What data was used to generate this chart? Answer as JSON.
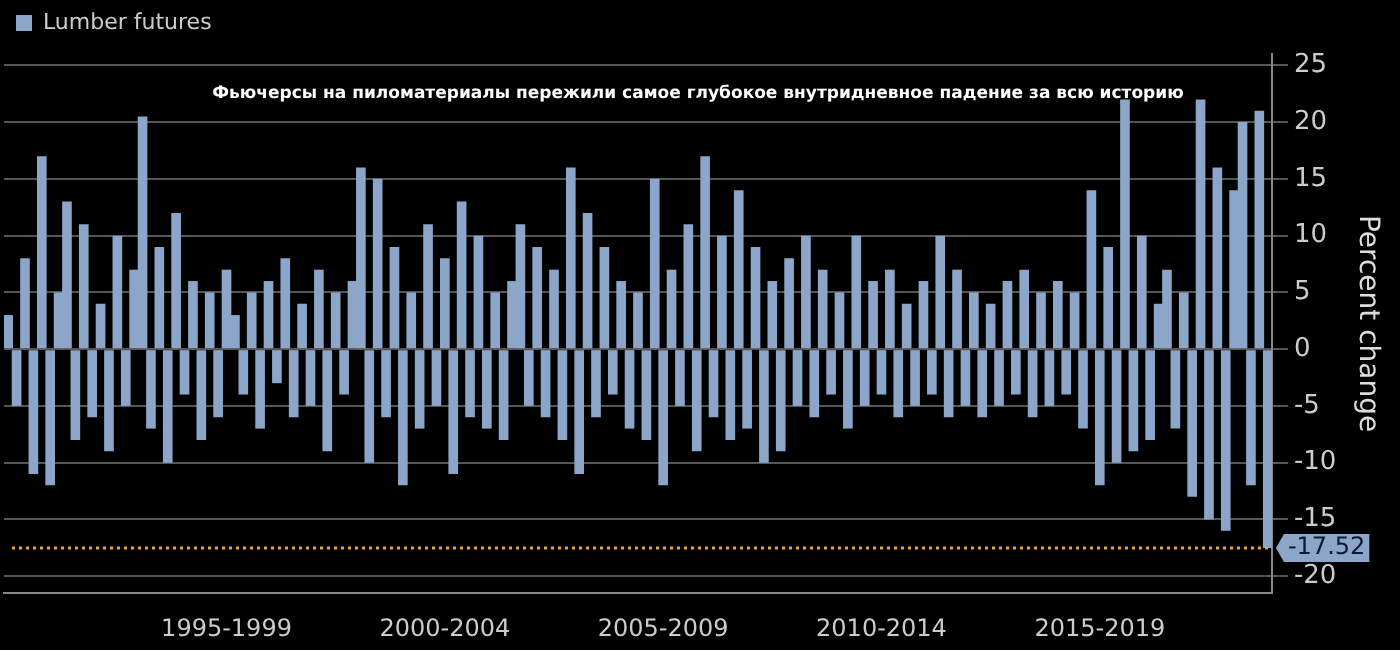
{
  "chart_data": {
    "type": "bar",
    "title": "Фьючерсы на пиломатериалы пережили самое глубокое внутридневное падение за всю историю",
    "ylabel": "Percent change",
    "categories": [
      null,
      null,
      null,
      null,
      null,
      null,
      null,
      null,
      null,
      null,
      null,
      null,
      null,
      null,
      null,
      null,
      null,
      null,
      null,
      null,
      null,
      null,
      null,
      null,
      null,
      null,
      "1995-1999",
      null,
      null,
      null,
      null,
      null,
      null,
      null,
      null,
      null,
      null,
      null,
      null,
      null,
      null,
      null,
      null,
      null,
      null,
      null,
      null,
      null,
      null,
      null,
      null,
      null,
      "2000-2004",
      null,
      null,
      null,
      null,
      null,
      null,
      null,
      null,
      null,
      null,
      null,
      null,
      null,
      null,
      null,
      null,
      null,
      null,
      null,
      null,
      null,
      null,
      null,
      null,
      null,
      "2005-2009",
      null,
      null,
      null,
      null,
      null,
      null,
      null,
      null,
      null,
      null,
      null,
      null,
      null,
      null,
      null,
      null,
      null,
      null,
      null,
      null,
      null,
      null,
      null,
      null,
      null,
      "2010-2014",
      null,
      null,
      null,
      null,
      null,
      null,
      null,
      null,
      null,
      null,
      null,
      null,
      null,
      null,
      null,
      null,
      null,
      null,
      null,
      null,
      null,
      null,
      null,
      null,
      null,
      "2015-2019",
      null,
      null,
      null,
      null,
      null,
      null,
      null,
      null,
      null,
      null,
      null,
      null,
      null,
      null,
      null,
      null,
      null,
      null,
      null,
      null
    ],
    "series": [
      {
        "name": "Lumber futures",
        "color": "#8ca6c9",
        "values": [
          3,
          -5,
          8,
          -11,
          17,
          -12,
          5,
          13,
          -8,
          11,
          -6,
          4,
          -9,
          10,
          -5,
          7,
          20.5,
          -7,
          9,
          -10,
          12,
          -4,
          6,
          -8,
          5,
          -6,
          7,
          3,
          -4,
          5,
          -7,
          6,
          -3,
          8,
          -6,
          4,
          -5,
          7,
          -9,
          5,
          -4,
          6,
          16,
          -10,
          15,
          -6,
          9,
          -12,
          5,
          -7,
          11,
          -5,
          8,
          -11,
          13,
          -6,
          10,
          -7,
          5,
          -8,
          6,
          11,
          -5,
          9,
          -6,
          7,
          -8,
          16,
          -11,
          12,
          -6,
          9,
          -4,
          6,
          -7,
          5,
          -8,
          15,
          -12,
          7,
          -5,
          11,
          -9,
          17,
          -6,
          10,
          -8,
          14,
          -7,
          9,
          -10,
          6,
          -9,
          8,
          -5,
          10,
          -6,
          7,
          -4,
          5,
          -7,
          10,
          -5,
          6,
          -4,
          7,
          -6,
          4,
          -5,
          6,
          -4,
          10,
          -6,
          7,
          -5,
          5,
          -6,
          4,
          -5,
          6,
          -4,
          7,
          -6,
          5,
          -5,
          6,
          -4,
          5,
          -7,
          14,
          -12,
          9,
          -10,
          22,
          -9,
          10,
          -8,
          4,
          7,
          -7,
          5,
          -13,
          22,
          -15,
          16,
          -16,
          14,
          20,
          -12,
          21,
          -17.52
        ]
      }
    ],
    "ylim": [
      -21.5,
      26
    ],
    "yticks": [
      25,
      20,
      15,
      10,
      5,
      0,
      -5,
      -10,
      -15,
      -20
    ],
    "grid": "y",
    "legend": "top left",
    "ref_lines": [
      {
        "axis": "y",
        "value": -17.52,
        "label": "-17.52",
        "color": "#e8a33a",
        "line_style": "dotted"
      }
    ]
  }
}
